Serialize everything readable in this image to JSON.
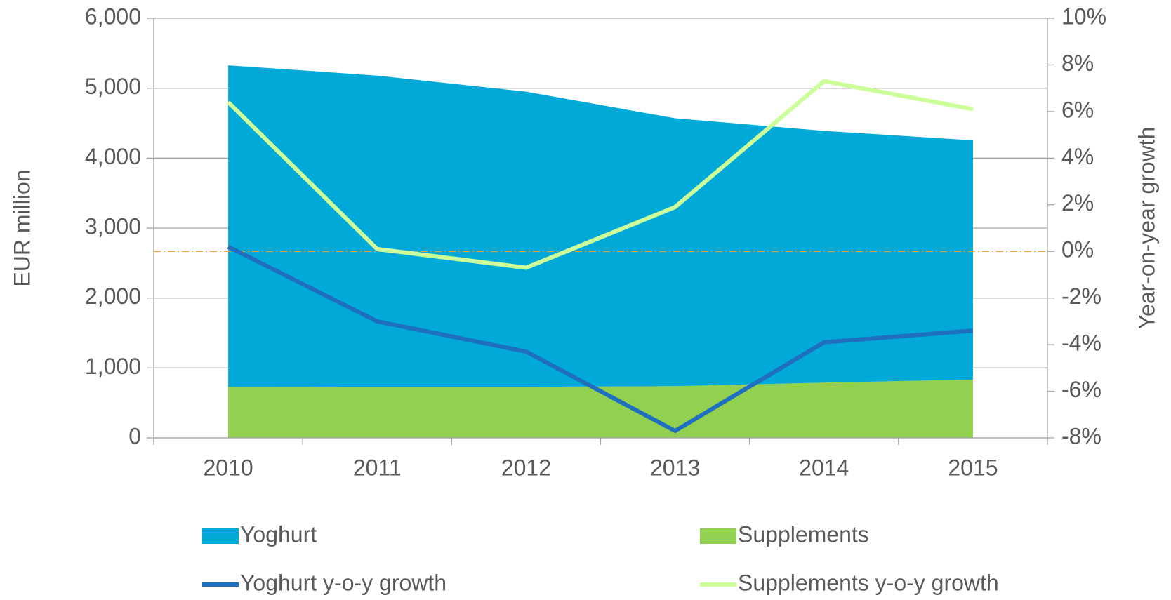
{
  "chart_data": {
    "type": "combo",
    "y_label": "EUR  million",
    "y2_label": "Year-on-year growth",
    "categories": [
      "2010",
      "2011",
      "2012",
      "2013",
      "2014",
      "2015"
    ],
    "series": [
      {
        "name": "Supplements",
        "type": "area",
        "color": "#92d050",
        "values": [
          727,
          730,
          730,
          740,
          790,
          834
        ]
      },
      {
        "name": "Yoghurt",
        "type": "area",
        "color": "#00a9d8",
        "values": [
          4600,
          4450,
          4220,
          3830,
          3600,
          3420
        ]
      },
      {
        "name": "Yoghurt y-o-y growth",
        "type": "line",
        "axis": "y2",
        "color": "#1f6fc0",
        "values": [
          0.2,
          -3.0,
          -4.3,
          -7.7,
          -3.9,
          -3.4
        ]
      },
      {
        "name": "Supplements y-o-y growth",
        "type": "line",
        "axis": "y2",
        "color": "#ccff99",
        "values": [
          6.4,
          0.1,
          -0.7,
          1.9,
          7.3,
          6.1
        ]
      }
    ],
    "stacked": true,
    "reference_line": {
      "axis": "y2",
      "value": 0,
      "color": "#f0a030"
    },
    "ylim": [
      0,
      6000
    ],
    "yticks": [
      0,
      {
        "value": 1000,
        "label": "1,000"
      },
      {
        "value": 2000,
        "label": "2,000"
      },
      {
        "value": 3000,
        "label": "3,000"
      },
      {
        "value": 4000,
        "label": "4,000"
      },
      {
        "value": 5000,
        "label": "5,000"
      },
      {
        "value": 6000,
        "label": "6,000"
      }
    ],
    "y2lim": [
      -8,
      10
    ],
    "y2ticks": [
      {
        "value": -8,
        "label": "-8%"
      },
      {
        "value": -6,
        "label": "-6%"
      },
      {
        "value": -4,
        "label": "-4%"
      },
      {
        "value": -2,
        "label": "-2%"
      },
      {
        "value": 0,
        "label": "0%"
      },
      {
        "value": 2,
        "label": "2%"
      },
      {
        "value": 4,
        "label": "4%"
      },
      {
        "value": 6,
        "label": "6%"
      },
      {
        "value": 8,
        "label": "8%"
      },
      {
        "value": 10,
        "label": "10%"
      }
    ],
    "grid": true
  }
}
